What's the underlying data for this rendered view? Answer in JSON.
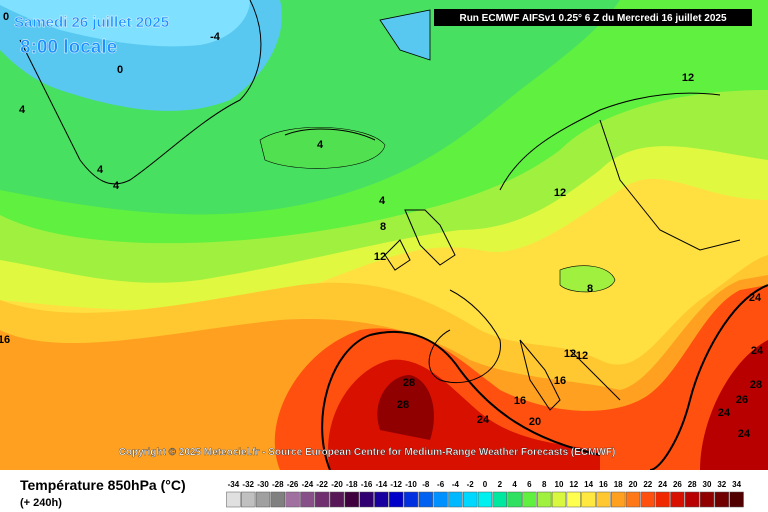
{
  "header": {
    "date": "Samedi 26 juillet 2025",
    "time": "8:00 locale",
    "run": "Run ECMWF AIFSv1 0.25° 6 Z du Mercredi 16 juillet 2025"
  },
  "map": {
    "contour_labels": [
      "-4",
      "0",
      "0",
      "4",
      "4",
      "4",
      "4",
      "4",
      "8",
      "12",
      "12",
      "12",
      "8",
      "12",
      "12",
      "16",
      "16",
      "20",
      "24",
      "28",
      "28",
      "24",
      "24",
      "28",
      "26",
      "24",
      "24",
      "16"
    ],
    "copyright": "Copyright © 2025 Meteociel.fr - Source European Centre for Medium-Range Weather Forecasts (ECMWF)"
  },
  "legend": {
    "title": "Température 850hPa (°C)",
    "subtitle": "(+ 240h)",
    "scale": [
      "-34",
      "-32",
      "-30",
      "-28",
      "-26",
      "-24",
      "-22",
      "-20",
      "-18",
      "-16",
      "-14",
      "-12",
      "-10",
      "-8",
      "-6",
      "-4",
      "-2",
      "0",
      "2",
      "4",
      "6",
      "8",
      "10",
      "12",
      "14",
      "16",
      "18",
      "20",
      "22",
      "24",
      "26",
      "28",
      "30",
      "32",
      "34"
    ],
    "colors": [
      "#e0e0e0",
      "#c0c0c0",
      "#a0a0a0",
      "#808080",
      "#a070a0",
      "#885088",
      "#703070",
      "#581858",
      "#400040",
      "#300070",
      "#1800a0",
      "#0000c8",
      "#0030e0",
      "#0060f0",
      "#0090ff",
      "#00b8ff",
      "#00d8ff",
      "#00f0f0",
      "#00e8a0",
      "#30e060",
      "#60f040",
      "#a0f040",
      "#d8f840",
      "#ffff50",
      "#ffe840",
      "#ffc830",
      "#ffa020",
      "#ff7818",
      "#ff5010",
      "#f02800",
      "#d81000",
      "#b80000",
      "#900000",
      "#700000",
      "#500000"
    ]
  }
}
